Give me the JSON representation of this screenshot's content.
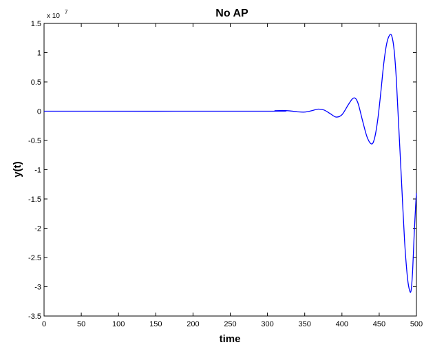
{
  "chart_data": {
    "type": "line",
    "title": "No AP",
    "xlabel": "time",
    "ylabel": "y(t)",
    "y_scale_label": "x 10",
    "y_scale_exponent": "7",
    "xlim": [
      0,
      500
    ],
    "ylim": [
      -3.5,
      1.5
    ],
    "x_ticks": [
      "0",
      "50",
      "100",
      "150",
      "200",
      "250",
      "300",
      "350",
      "400",
      "450",
      "500"
    ],
    "y_ticks": [
      "1.5",
      "1",
      "0.5",
      "0",
      "-0.5",
      "-1",
      "-1.5",
      "-2",
      "-2.5",
      "-3",
      "-3.5"
    ],
    "grid": false,
    "line_color": "#0000ff",
    "series": [
      {
        "x": [
          0,
          300,
          310,
          320,
          330,
          340,
          350,
          360,
          368,
          376,
          384,
          392,
          400,
          408,
          414,
          418,
          422,
          428,
          434,
          440,
          444,
          448,
          452,
          456,
          460,
          464,
          467,
          470,
          473,
          476,
          480,
          484,
          488,
          491,
          493,
          495,
          497,
          499,
          500
        ],
        "y": [
          0,
          0,
          0.008,
          0.012,
          0.005,
          -0.01,
          -0.015,
          0.01,
          0.035,
          0.02,
          -0.04,
          -0.1,
          -0.06,
          0.1,
          0.21,
          0.22,
          0.12,
          -0.18,
          -0.45,
          -0.56,
          -0.45,
          -0.15,
          0.3,
          0.8,
          1.15,
          1.3,
          1.28,
          1.05,
          0.55,
          -0.2,
          -1.2,
          -2.2,
          -2.85,
          -3.07,
          -3.05,
          -2.7,
          -2.1,
          -1.6,
          -1.4
        ]
      }
    ]
  }
}
